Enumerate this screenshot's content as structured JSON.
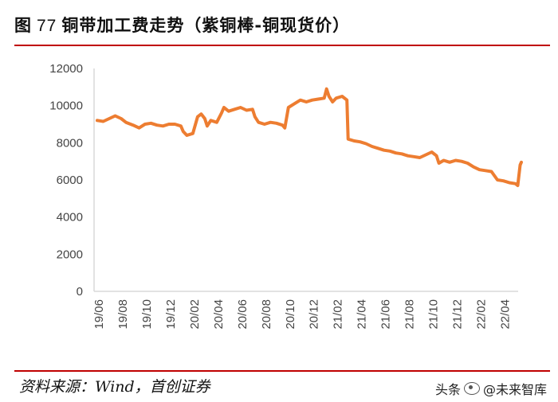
{
  "figure": {
    "label": "图",
    "number": "77",
    "title": "铜带加工费走势（紫铜棒-铜现货价）"
  },
  "source": "资料来源：Wind，首创证券",
  "watermark": {
    "platform": "头条",
    "account": "@未来智库"
  },
  "colors": {
    "line": "#ed7d31",
    "rule": "#c00000",
    "axis": "#d9d9d9"
  },
  "chart_data": {
    "type": "line",
    "title": "",
    "xlabel": "",
    "ylabel": "",
    "ylim": [
      0,
      12000
    ],
    "yticks": [
      0,
      2000,
      4000,
      6000,
      8000,
      10000,
      12000
    ],
    "xticks": [
      "19/06",
      "19/08",
      "19/10",
      "19/12",
      "20/02",
      "20/04",
      "20/06",
      "20/08",
      "20/10",
      "20/12",
      "21/02",
      "21/04",
      "21/06",
      "21/08",
      "21/10",
      "21/12",
      "22/02",
      "22/04"
    ],
    "grid": false,
    "legend": "none",
    "series": [
      {
        "name": "",
        "points": [
          [
            0.0,
            9200
          ],
          [
            0.25,
            9150
          ],
          [
            0.5,
            9300
          ],
          [
            0.75,
            9450
          ],
          [
            1.0,
            9300
          ],
          [
            1.2,
            9100
          ],
          [
            1.5,
            8950
          ],
          [
            1.75,
            8800
          ],
          [
            2.0,
            9000
          ],
          [
            2.25,
            9050
          ],
          [
            2.5,
            8950
          ],
          [
            2.75,
            8900
          ],
          [
            3.0,
            9000
          ],
          [
            3.25,
            9000
          ],
          [
            3.5,
            8900
          ],
          [
            3.6,
            8600
          ],
          [
            3.75,
            8400
          ],
          [
            4.0,
            8500
          ],
          [
            4.2,
            9400
          ],
          [
            4.35,
            9550
          ],
          [
            4.5,
            9300
          ],
          [
            4.6,
            8900
          ],
          [
            4.75,
            9200
          ],
          [
            5.0,
            9100
          ],
          [
            5.2,
            9600
          ],
          [
            5.3,
            9900
          ],
          [
            5.5,
            9700
          ],
          [
            5.75,
            9800
          ],
          [
            6.0,
            9900
          ],
          [
            6.25,
            9750
          ],
          [
            6.5,
            9800
          ],
          [
            6.6,
            9400
          ],
          [
            6.75,
            9100
          ],
          [
            7.0,
            9000
          ],
          [
            7.25,
            9100
          ],
          [
            7.5,
            9050
          ],
          [
            7.75,
            8950
          ],
          [
            7.85,
            8800
          ],
          [
            8.0,
            9900
          ],
          [
            8.25,
            10100
          ],
          [
            8.5,
            10300
          ],
          [
            8.75,
            10200
          ],
          [
            9.0,
            10300
          ],
          [
            9.25,
            10350
          ],
          [
            9.5,
            10400
          ],
          [
            9.6,
            10900
          ],
          [
            9.7,
            10500
          ],
          [
            9.85,
            10200
          ],
          [
            10.0,
            10400
          ],
          [
            10.25,
            10500
          ],
          [
            10.45,
            10300
          ],
          [
            10.5,
            8200
          ],
          [
            10.75,
            8100
          ],
          [
            11.0,
            8050
          ],
          [
            11.25,
            7950
          ],
          [
            11.5,
            7800
          ],
          [
            11.75,
            7700
          ],
          [
            12.0,
            7600
          ],
          [
            12.25,
            7550
          ],
          [
            12.5,
            7450
          ],
          [
            12.75,
            7400
          ],
          [
            13.0,
            7300
          ],
          [
            13.25,
            7250
          ],
          [
            13.5,
            7200
          ],
          [
            13.75,
            7350
          ],
          [
            14.0,
            7500
          ],
          [
            14.2,
            7300
          ],
          [
            14.3,
            6900
          ],
          [
            14.5,
            7050
          ],
          [
            14.75,
            6950
          ],
          [
            15.0,
            7050
          ],
          [
            15.25,
            7000
          ],
          [
            15.5,
            6900
          ],
          [
            15.75,
            6700
          ],
          [
            16.0,
            6550
          ],
          [
            16.25,
            6500
          ],
          [
            16.5,
            6450
          ],
          [
            16.75,
            6000
          ],
          [
            17.0,
            5950
          ],
          [
            17.25,
            5850
          ],
          [
            17.5,
            5800
          ],
          [
            17.6,
            5700
          ],
          [
            17.7,
            6800
          ],
          [
            17.75,
            6950
          ]
        ]
      }
    ]
  }
}
